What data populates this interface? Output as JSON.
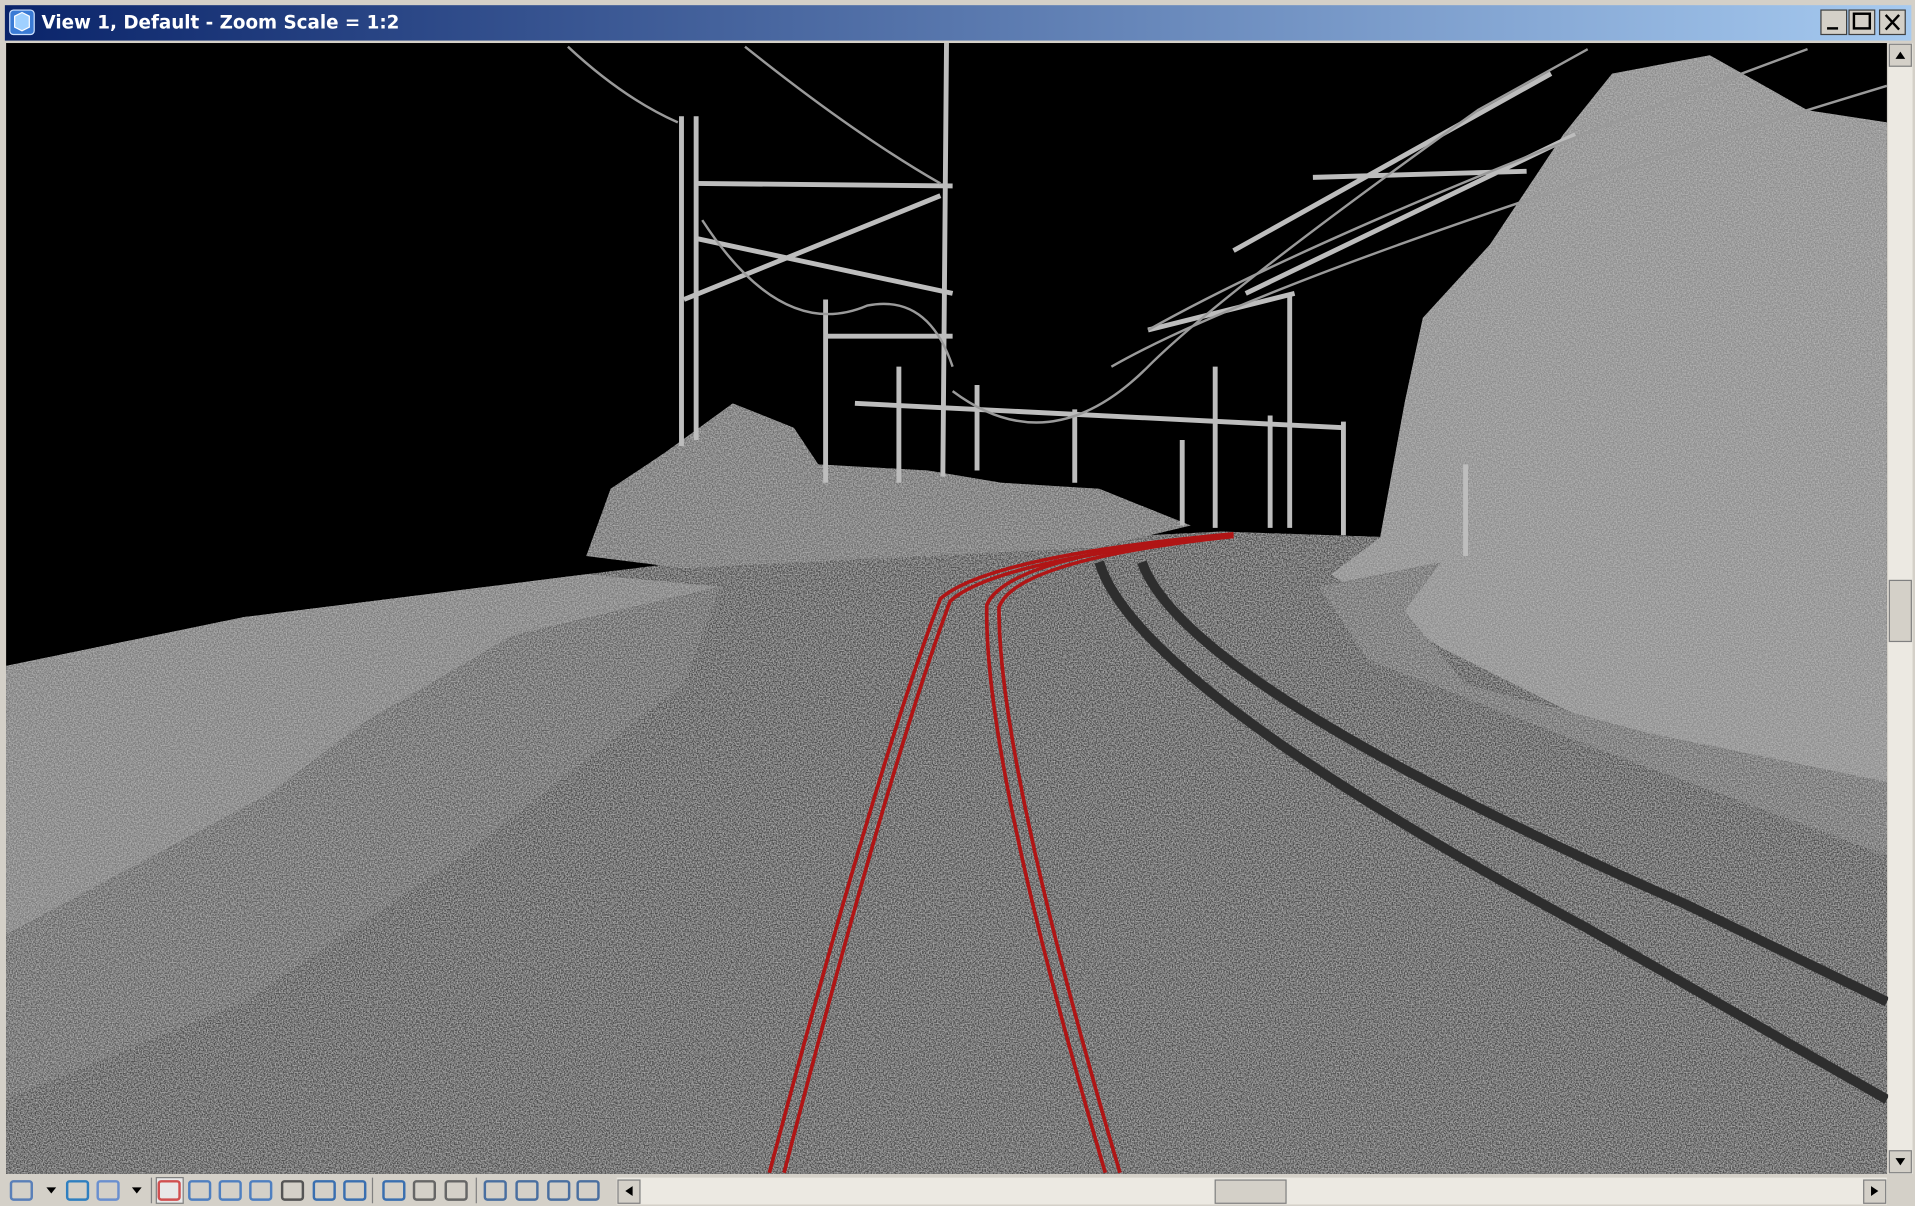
{
  "window": {
    "title": "View 1, Default - Zoom Scale = 1:2"
  }
}
